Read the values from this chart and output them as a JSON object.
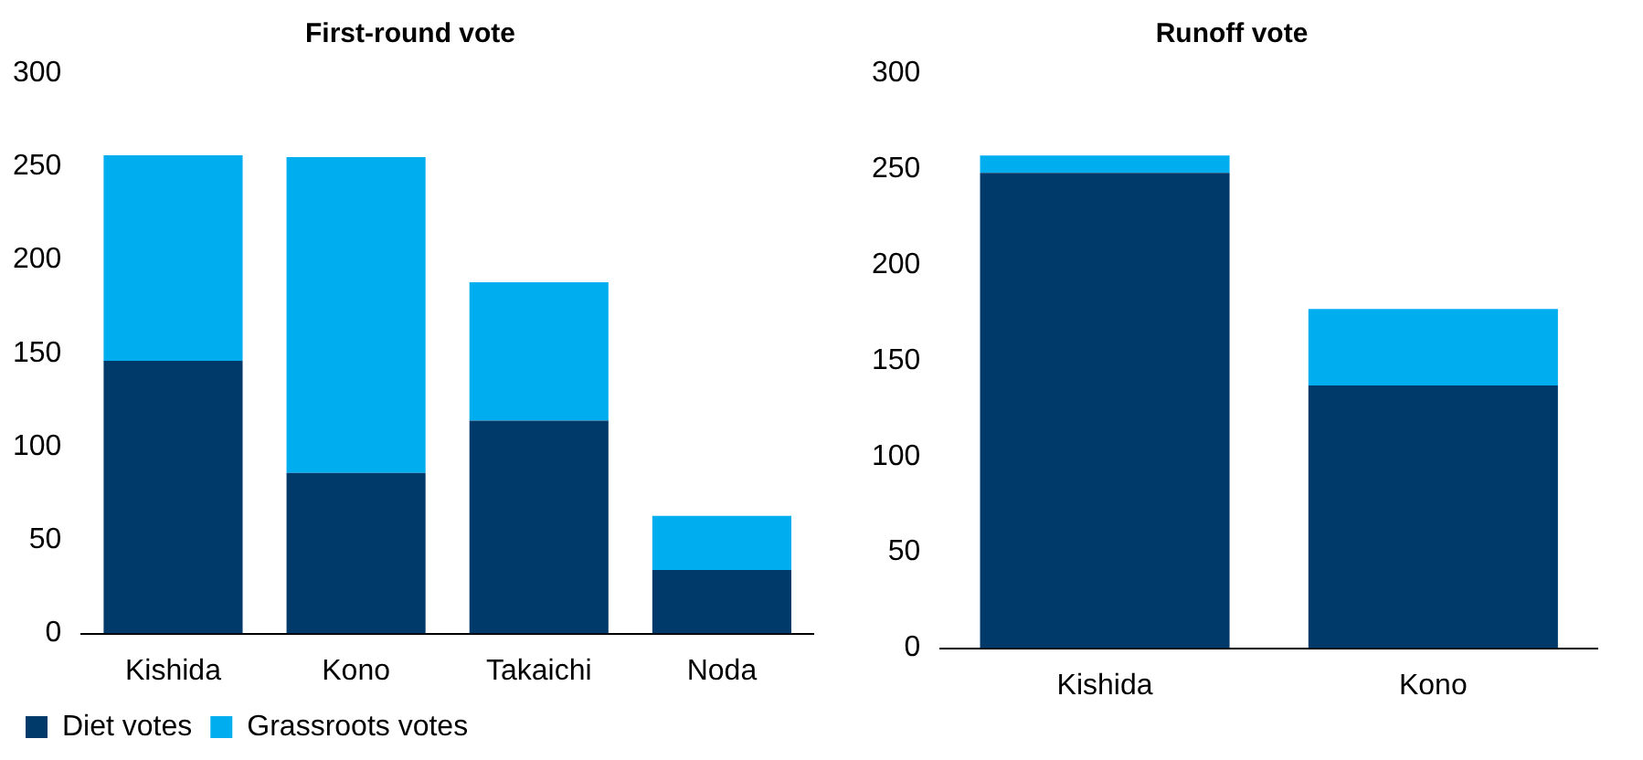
{
  "chart_data": [
    {
      "type": "bar",
      "title": "First-round vote",
      "categories": [
        "Kishida",
        "Kono",
        "Takaichi",
        "Noda"
      ],
      "stacked": true,
      "ylim": [
        0,
        300
      ],
      "yticks": [
        0,
        50,
        100,
        150,
        200,
        250,
        300
      ],
      "grid": false,
      "legend": "bottom",
      "series": [
        {
          "name": "Diet votes",
          "color": "#003a6b",
          "values": [
            146,
            86,
            114,
            34
          ]
        },
        {
          "name": "Grassroots votes",
          "color": "#00adef",
          "values": [
            110,
            169,
            74,
            29
          ]
        }
      ]
    },
    {
      "type": "bar",
      "title": "Runoff vote",
      "categories": [
        "Kishida",
        "Kono"
      ],
      "stacked": true,
      "ylim": [
        0,
        300
      ],
      "yticks": [
        0,
        50,
        100,
        150,
        200,
        250,
        300
      ],
      "grid": false,
      "series": [
        {
          "color": "#003a6b",
          "values": [
            248,
            137
          ]
        },
        {
          "color": "#00adef",
          "values": [
            9,
            40
          ]
        }
      ]
    }
  ]
}
